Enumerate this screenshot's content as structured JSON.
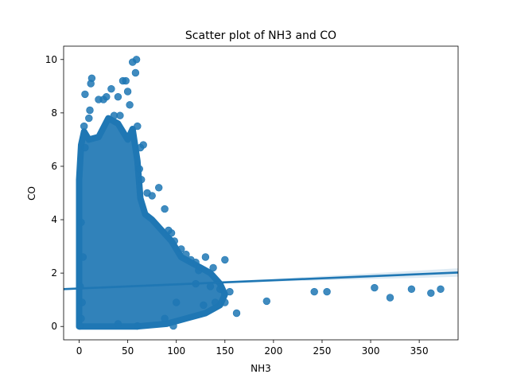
{
  "chart_data": {
    "type": "scatter",
    "title": "Scatter plot of NH3 and CO",
    "xlabel": "NH3",
    "ylabel": "CO",
    "xlim": [
      -16,
      390
    ],
    "ylim": [
      -0.5,
      10.5
    ],
    "xticks": [
      0,
      50,
      100,
      150,
      200,
      250,
      300,
      350
    ],
    "yticks": [
      0,
      2,
      4,
      6,
      8,
      10
    ],
    "grid": false,
    "colors": {
      "points": "#1f77b4",
      "regression": "#1f77b4",
      "ci_band": "#1f77b4"
    },
    "regression": {
      "x": [
        -16,
        390
      ],
      "y": [
        1.4,
        2.02
      ]
    },
    "series": [
      {
        "values": [
          {
            "x": 0.5,
            "y": 0.02
          },
          {
            "x": 2,
            "y": 0.3
          },
          {
            "x": 3,
            "y": 0.9
          },
          {
            "x": 1,
            "y": 1.5
          },
          {
            "x": 4,
            "y": 2.6
          },
          {
            "x": 2,
            "y": 3.9
          },
          {
            "x": 6,
            "y": 6.7
          },
          {
            "x": 5,
            "y": 7.5
          },
          {
            "x": 6,
            "y": 8.7
          },
          {
            "x": 10,
            "y": 7.8
          },
          {
            "x": 11,
            "y": 8.1
          },
          {
            "x": 12,
            "y": 9.1
          },
          {
            "x": 13,
            "y": 9.3
          },
          {
            "x": 20,
            "y": 8.5
          },
          {
            "x": 25,
            "y": 8.5
          },
          {
            "x": 28,
            "y": 8.6
          },
          {
            "x": 33,
            "y": 8.9
          },
          {
            "x": 40,
            "y": 8.6
          },
          {
            "x": 45,
            "y": 9.2
          },
          {
            "x": 48,
            "y": 9.2
          },
          {
            "x": 50,
            "y": 8.8
          },
          {
            "x": 52,
            "y": 8.3
          },
          {
            "x": 55,
            "y": 9.9
          },
          {
            "x": 59,
            "y": 10.0
          },
          {
            "x": 58,
            "y": 9.5
          },
          {
            "x": 36,
            "y": 7.9
          },
          {
            "x": 42,
            "y": 7.9
          },
          {
            "x": 60,
            "y": 7.5
          },
          {
            "x": 63,
            "y": 6.7
          },
          {
            "x": 66,
            "y": 6.8
          },
          {
            "x": 62,
            "y": 5.9
          },
          {
            "x": 64,
            "y": 5.5
          },
          {
            "x": 70,
            "y": 5.0
          },
          {
            "x": 75,
            "y": 4.9
          },
          {
            "x": 82,
            "y": 5.2
          },
          {
            "x": 88,
            "y": 4.4
          },
          {
            "x": 92,
            "y": 3.6
          },
          {
            "x": 95,
            "y": 3.5
          },
          {
            "x": 98,
            "y": 3.2
          },
          {
            "x": 105,
            "y": 2.9
          },
          {
            "x": 110,
            "y": 2.7
          },
          {
            "x": 115,
            "y": 2.5
          },
          {
            "x": 120,
            "y": 2.4
          },
          {
            "x": 123,
            "y": 2.1
          },
          {
            "x": 130,
            "y": 2.6
          },
          {
            "x": 138,
            "y": 2.2
          },
          {
            "x": 150,
            "y": 2.5
          },
          {
            "x": 145,
            "y": 1.4
          },
          {
            "x": 150,
            "y": 0.9
          },
          {
            "x": 155,
            "y": 1.3
          },
          {
            "x": 162,
            "y": 0.5
          },
          {
            "x": 140,
            "y": 0.9
          },
          {
            "x": 135,
            "y": 1.5
          },
          {
            "x": 128,
            "y": 0.8
          },
          {
            "x": 120,
            "y": 1.6
          },
          {
            "x": 100,
            "y": 0.9
          },
          {
            "x": 97,
            "y": 0.02
          },
          {
            "x": 88,
            "y": 0.3
          },
          {
            "x": 60,
            "y": 0.02
          },
          {
            "x": 40,
            "y": 0.1
          },
          {
            "x": 193,
            "y": 0.95
          },
          {
            "x": 242,
            "y": 1.3
          },
          {
            "x": 255,
            "y": 1.3
          },
          {
            "x": 304,
            "y": 1.45
          },
          {
            "x": 320,
            "y": 1.08
          },
          {
            "x": 342,
            "y": 1.4
          },
          {
            "x": 362,
            "y": 1.25
          },
          {
            "x": 372,
            "y": 1.4
          }
        ]
      }
    ]
  }
}
